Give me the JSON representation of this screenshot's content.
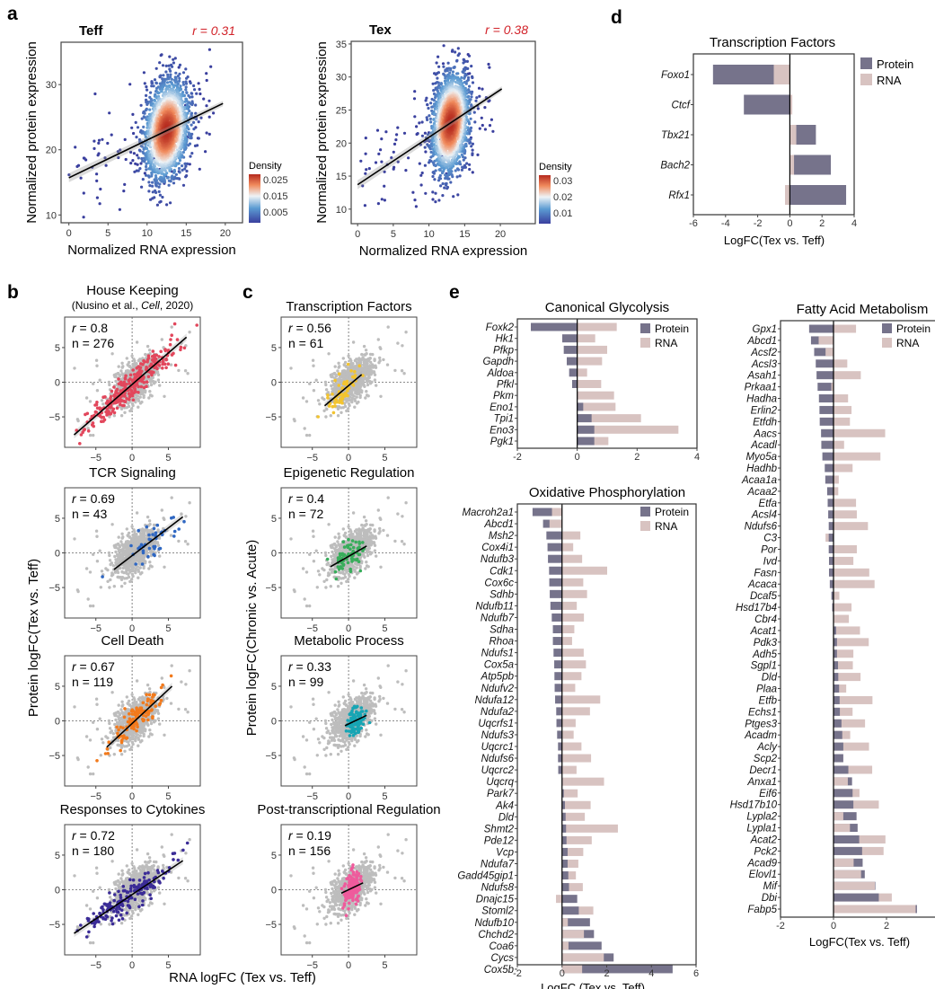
{
  "panel_labels": {
    "a": "a",
    "b": "b",
    "c": "c",
    "d": "d",
    "e": "e"
  },
  "shared": {
    "b_ylabel": "Protein logFC(Tex vs. Teff)",
    "c_ylabel": "Protein logFC(Chronic vs. Acute)",
    "bc_xlabel": "RNA logFC (Tex vs. Teff)"
  },
  "colors": {
    "protein": "#76738b",
    "rna": "#d8c3c1",
    "gray_points": "#bdbdbd",
    "r_label": "#d2232a"
  },
  "chart_data": [
    {
      "id": "a_teff",
      "panel": "a",
      "type": "scatter",
      "title": "Teff",
      "annotation": "r = 0.31",
      "xlabel": "Normalized RNA expression",
      "ylabel": "Normalized protein expression",
      "xticks": [
        0,
        5,
        10,
        15,
        20
      ],
      "yticks": [
        10,
        20,
        30
      ],
      "xlim": [
        -1,
        22.2
      ],
      "ylim": [
        8.8,
        36.5
      ],
      "fit_line": [
        [
          0,
          15.7
        ],
        [
          19.7,
          27.1
        ]
      ],
      "colorbar": {
        "title": "Density",
        "ticks": [
          "0.025",
          "0.015",
          "0.005"
        ]
      }
    },
    {
      "id": "a_tex",
      "panel": "a",
      "type": "scatter",
      "title": "Tex",
      "annotation": "r = 0.38",
      "xlabel": "Normalized RNA expression",
      "ylabel": "Normalized protein expression",
      "xticks": [
        0,
        5,
        10,
        15,
        20
      ],
      "yticks": [
        10,
        15,
        20,
        25,
        30,
        35
      ],
      "xlim": [
        -0.9,
        24.9
      ],
      "ylim": [
        7.8,
        35.4
      ],
      "fit_line": [
        [
          0,
          13.7
        ],
        [
          20.2,
          28.2
        ]
      ],
      "colorbar": {
        "title": "Density",
        "ticks": [
          "0.03",
          "0.02",
          "0.01"
        ]
      }
    },
    {
      "id": "b1",
      "panel": "b",
      "type": "scatter",
      "title": "House Keeping",
      "subtitle": [
        "(Nusino et al., ",
        "Cell",
        ", 2020)"
      ],
      "r": "0.8",
      "n": "276",
      "color": "#e2475c",
      "fit_line": [
        [
          -8,
          -7.6
        ],
        [
          7.5,
          6.5
        ]
      ]
    },
    {
      "id": "b2",
      "panel": "b",
      "type": "scatter",
      "title": "TCR Signaling",
      "r": "0.69",
      "n": "43",
      "color": "#2f67c2",
      "fit_line": [
        [
          -2.5,
          -2.4
        ],
        [
          7,
          5.2
        ]
      ]
    },
    {
      "id": "b3",
      "panel": "b",
      "type": "scatter",
      "title": "Cell Death",
      "r": "0.67",
      "n": "119",
      "color": "#f27a1c",
      "fit_line": [
        [
          -3.5,
          -3.8
        ],
        [
          5.5,
          5.0
        ]
      ]
    },
    {
      "id": "b4",
      "panel": "b",
      "type": "scatter",
      "title": "Responses to Cytokines",
      "r": "0.72",
      "n": "180",
      "color": "#3b2c97",
      "fit_line": [
        [
          -8,
          -6.3
        ],
        [
          7,
          4.2
        ]
      ]
    },
    {
      "id": "c1",
      "panel": "c",
      "type": "scatter",
      "title": "Transcription Factors",
      "r": "0.56",
      "n": "61",
      "color": "#f3c42f",
      "fit_line": [
        [
          -3.3,
          -3.4
        ],
        [
          1.8,
          1.1
        ]
      ]
    },
    {
      "id": "c2",
      "panel": "c",
      "type": "scatter",
      "title": "Epigenetic Regulation",
      "r": "0.4",
      "n": "72",
      "color": "#38ad5b",
      "fit_line": [
        [
          -2.5,
          -2.0
        ],
        [
          2.5,
          1.0
        ]
      ]
    },
    {
      "id": "c3",
      "panel": "c",
      "type": "scatter",
      "title": "Metabolic Process",
      "r": "0.33",
      "n": "99",
      "color": "#17a5b4",
      "fit_line": [
        [
          -0.5,
          -0.7
        ],
        [
          2.5,
          0.8
        ]
      ]
    },
    {
      "id": "c4",
      "panel": "c",
      "type": "scatter",
      "title": "Post-transcriptional Regulation",
      "r": "0.19",
      "n": "156",
      "color": "#ef5b9c",
      "fit_line": [
        [
          -1,
          -0.5
        ],
        [
          2,
          1.0
        ]
      ]
    },
    {
      "id": "d",
      "panel": "d",
      "type": "bar",
      "orientation": "horizontal",
      "title": "Transcription Factors",
      "xlabel": "LogFC(Tex vs. Teff)",
      "xlim": [
        -6,
        4
      ],
      "xticks": [
        -6,
        -4,
        -2,
        0,
        2,
        4
      ],
      "legend": [
        "Protein",
        "RNA"
      ],
      "legend_position": "right",
      "categories": [
        "Foxo1",
        "Ctcf",
        "Tbx21",
        "Bach2",
        "Rfx1"
      ],
      "series": [
        {
          "name": "Protein",
          "values": [
            -4.78,
            -2.86,
            1.62,
            2.55,
            3.5
          ]
        },
        {
          "name": "RNA",
          "values": [
            -1.0,
            0.15,
            0.4,
            0.26,
            -0.3
          ]
        }
      ]
    },
    {
      "id": "e1",
      "panel": "e",
      "type": "bar",
      "orientation": "horizontal",
      "title": "Canonical Glycolysis",
      "xlabel": "",
      "xlim": [
        -2,
        4
      ],
      "xticks": [
        -2,
        0,
        2,
        4
      ],
      "legend": [
        "Protein",
        "RNA"
      ],
      "legend_position": "top-right",
      "categories": [
        "Foxk2",
        "Hk1",
        "Pfkp",
        "Gapdh",
        "Aldoa",
        "Pfkl",
        "Pkm",
        "Eno1",
        "Tpi1",
        "Eno3",
        "Pgk1"
      ],
      "series": [
        {
          "name": "Protein",
          "values": [
            -1.55,
            -0.5,
            -0.45,
            -0.35,
            -0.27,
            -0.17,
            0.0,
            0.2,
            0.48,
            0.57,
            0.57
          ]
        },
        {
          "name": "RNA",
          "values": [
            1.32,
            0.6,
            1.0,
            0.83,
            0.33,
            0.8,
            1.23,
            1.28,
            2.13,
            3.38,
            1.04
          ]
        }
      ]
    },
    {
      "id": "e2",
      "panel": "e",
      "type": "bar",
      "orientation": "horizontal",
      "title": "Oxidative Phosphorylation",
      "xlabel": "LogFC (Tex vs. Teff)",
      "xlim": [
        -2,
        6
      ],
      "xticks": [
        -2,
        0,
        2,
        4,
        6
      ],
      "legend": [
        "Protein",
        "RNA"
      ],
      "legend_position": "top-right",
      "categories": [
        "Macroh2a1",
        "Abcd1",
        "Msh2",
        "Cox4i1",
        "Ndufb3",
        "Cdk1",
        "Cox6c",
        "Sdhb",
        "Ndufb11",
        "Ndufb7",
        "Sdha",
        "Rhoa",
        "Ndufs1",
        "Cox5a",
        "Atp5pb",
        "Ndufv2",
        "Ndufa12",
        "Ndufa2",
        "Uqcrfs1",
        "Ndufs3",
        "Uqcrc1",
        "Ndufs6",
        "Uqcrc2",
        "Uqcrq",
        "Park7",
        "Ak4",
        "Dld",
        "Shmt2",
        "Pde12",
        "Vcp",
        "Ndufa7",
        "Gadd45gip1",
        "Ndufs8",
        "Dnajc15",
        "Stoml2",
        "Ndufb10",
        "Chchd2",
        "Coa6",
        "Cycs",
        "Cox5b"
      ],
      "series": [
        {
          "name": "Protein",
          "values": [
            -1.32,
            -0.85,
            -0.7,
            -0.65,
            -0.63,
            -0.58,
            -0.57,
            -0.55,
            -0.52,
            -0.46,
            -0.41,
            -0.41,
            -0.38,
            -0.35,
            -0.34,
            -0.33,
            -0.31,
            -0.26,
            -0.25,
            -0.22,
            -0.18,
            -0.18,
            -0.17,
            0.0,
            0.08,
            0.13,
            0.16,
            0.18,
            0.2,
            0.25,
            0.25,
            0.28,
            0.31,
            0.68,
            0.75,
            1.25,
            1.43,
            1.77,
            2.31,
            4.95
          ]
        },
        {
          "name": "RNA",
          "values": [
            -0.45,
            -0.56,
            0.82,
            0.5,
            0.9,
            2.02,
            0.95,
            1.12,
            0.66,
            0.98,
            0.55,
            0.45,
            0.97,
            1.07,
            0.87,
            0.59,
            1.71,
            1.25,
            0.61,
            0.52,
            0.87,
            1.3,
            0.65,
            1.88,
            0.7,
            1.28,
            1.02,
            2.5,
            1.33,
            0.95,
            0.73,
            0.62,
            0.93,
            -0.27,
            1.4,
            0.26,
            0.98,
            0.29,
            1.87,
            0.9
          ]
        }
      ]
    },
    {
      "id": "e3",
      "panel": "e",
      "type": "bar",
      "orientation": "horizontal",
      "title": "Fatty Acid Metabolism",
      "xlabel": "LogFC(Tex vs. Teff)",
      "xlim": [
        -2,
        4
      ],
      "xticks": [
        -2,
        0,
        2
      ],
      "legend": [
        "Protein",
        "RNA"
      ],
      "legend_position": "top-right",
      "categories": [
        "Gpx1",
        "Abcd1",
        "Acsf2",
        "Acsl3",
        "Asah1",
        "Prkaa1",
        "Hadha",
        "Erlin2",
        "Etfdh",
        "Aacs",
        "Acadl",
        "Myo5a",
        "Hadhb",
        "Acaa1a",
        "Acaa2",
        "Etfa",
        "Acsl4",
        "Ndufs6",
        "C3",
        "Por",
        "Ivd",
        "Fasn",
        "Acaca",
        "Dcaf5",
        "Hsd17b4",
        "Cbr4",
        "Acat1",
        "Pdk3",
        "Adh5",
        "Sgpl1",
        "Dld",
        "Plaa",
        "Etfb",
        "Echs1",
        "Ptges3",
        "Acadm",
        "Acly",
        "Scp2",
        "Decr1",
        "Anxa1",
        "Eif6",
        "Hsd17b10",
        "Lypla2",
        "Lypla1",
        "Acat2",
        "Pck2",
        "Acad9",
        "Elovl1",
        "Mif",
        "Dbi",
        "Fabp5"
      ],
      "series": [
        {
          "name": "Protein",
          "values": [
            -0.92,
            -0.85,
            -0.73,
            -0.67,
            -0.64,
            -0.6,
            -0.55,
            -0.53,
            -0.52,
            -0.47,
            -0.46,
            -0.42,
            -0.33,
            -0.31,
            -0.24,
            -0.22,
            -0.2,
            -0.18,
            -0.18,
            -0.18,
            -0.17,
            -0.17,
            -0.14,
            -0.08,
            -0.05,
            0.0,
            0.1,
            0.13,
            0.13,
            0.17,
            0.18,
            0.21,
            0.23,
            0.24,
            0.3,
            0.33,
            0.37,
            0.37,
            0.56,
            0.7,
            0.72,
            0.75,
            0.87,
            0.91,
            0.97,
            1.08,
            1.1,
            1.18,
            1.58,
            1.71,
            3.15
          ]
        },
        {
          "name": "RNA",
          "values": [
            0.85,
            -0.56,
            -0.3,
            0.52,
            1.03,
            -0.08,
            0.55,
            0.68,
            0.62,
            1.95,
            0.4,
            1.77,
            0.72,
            0.2,
            0.18,
            0.85,
            0.88,
            1.3,
            -0.3,
            0.88,
            0.75,
            1.35,
            1.55,
            0.22,
            0.68,
            0.58,
            1.0,
            1.33,
            0.75,
            0.73,
            1.02,
            0.48,
            1.47,
            0.72,
            1.19,
            0.63,
            1.34,
            0.0,
            1.46,
            0.54,
            0.98,
            1.71,
            0.37,
            0.62,
            1.96,
            1.89,
            0.76,
            1.04,
            1.56,
            2.2,
            3.1
          ]
        }
      ]
    }
  ],
  "small_scatter_axes": {
    "xticks": [
      -5,
      0,
      5
    ],
    "yticks": [
      -5,
      0,
      5
    ],
    "xlim": [
      -9.3,
      9.4
    ],
    "ylim": [
      -9.4,
      9.4
    ]
  }
}
